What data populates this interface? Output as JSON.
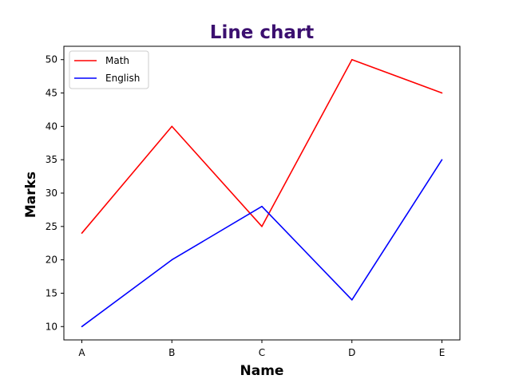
{
  "chart_data": {
    "type": "line",
    "title": "Line chart",
    "title_color": "#3b0f6f",
    "xlabel": "Name",
    "ylabel": "Marks",
    "categories": [
      "A",
      "B",
      "C",
      "D",
      "E"
    ],
    "ylim": [
      8,
      52
    ],
    "yticks": [
      10,
      15,
      20,
      25,
      30,
      35,
      40,
      45,
      50
    ],
    "grid": false,
    "legend_position": "top-left",
    "series": [
      {
        "name": "Math",
        "color": "#ff0000",
        "values": [
          24,
          40,
          25,
          50,
          45
        ]
      },
      {
        "name": "English",
        "color": "#0000ff",
        "values": [
          10,
          20,
          28,
          14,
          35
        ]
      }
    ]
  }
}
